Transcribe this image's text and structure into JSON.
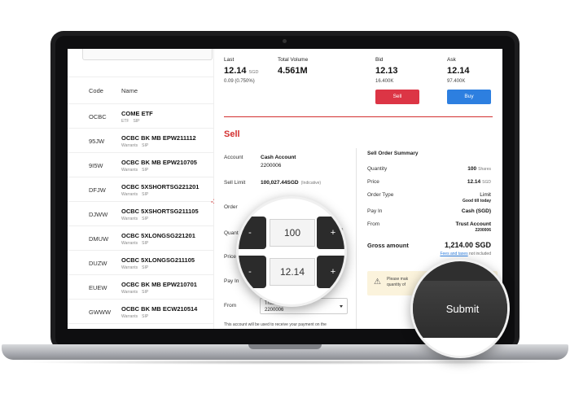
{
  "list": {
    "headers": {
      "code": "Code",
      "name": "Name"
    },
    "rows": [
      {
        "code": "OCBC",
        "name": "COME ETF",
        "tags": [
          "ETF",
          "SIP"
        ]
      },
      {
        "code": "95JW",
        "name": "OCBC BK MB EPW211112",
        "tags": [
          "Warrants",
          "SIP"
        ]
      },
      {
        "code": "9I5W",
        "name": "OCBC BK MB EPW210705",
        "tags": [
          "Warrants",
          "SIP"
        ]
      },
      {
        "code": "DFJW",
        "name": "OCBC 5XSHORTSG221201",
        "tags": [
          "Warrants",
          "SIP"
        ]
      },
      {
        "code": "DJWW",
        "name": "OCBC 5XSHORTSG211105",
        "tags": [
          "Warrants",
          "SIP"
        ]
      },
      {
        "code": "DMUW",
        "name": "OCBC 5XLONGSG221201",
        "tags": [
          "Warrants",
          "SIP"
        ]
      },
      {
        "code": "DUZW",
        "name": "OCBC 5XLONGSG211105",
        "tags": [
          "Warrants",
          "SIP"
        ]
      },
      {
        "code": "EUEW",
        "name": "OCBC BK MB EPW210701",
        "tags": [
          "Warrants",
          "SIP"
        ]
      },
      {
        "code": "GWWW",
        "name": "OCBC BK MB ECW210514",
        "tags": [
          "Warrants",
          "SIP"
        ]
      }
    ],
    "partial_red": "-1"
  },
  "quote": {
    "last_label": "Last",
    "last_value": "12.14",
    "last_unit": "SGD",
    "change": "0.09 (0.750%)",
    "volume_label": "Total Volume",
    "volume_value": "4.561M",
    "bid_label": "Bid",
    "bid_value": "12.13",
    "bid_size": "16.400K",
    "ask_label": "Ask",
    "ask_value": "12.14",
    "ask_size": "97.400K",
    "sell_button": "Sell",
    "buy_button": "Buy"
  },
  "form": {
    "title": "Sell",
    "account_label": "Account",
    "account_value": "Cash Account",
    "account_number": "2200006",
    "limit_label": "Sell Limit",
    "limit_value": "100,027.44SGD",
    "limit_note": "(Indicative)",
    "order_label": "Order",
    "quantity_label": "Quant",
    "quantity_suffix": "les",
    "price_label": "Price",
    "payin_label": "Pay In",
    "from_label": "From",
    "from_value_1": "Trust Account",
    "from_value_2": "2200006",
    "footnote": "This account will be used to receive your payment on the"
  },
  "summary": {
    "title": "Sell Order Summary",
    "quantity_label": "Quantity",
    "quantity_value": "100",
    "quantity_unit": "Shares",
    "price_label": "Price",
    "price_value": "12.14",
    "price_unit": "SGD",
    "order_type_label": "Order Type",
    "order_type_value": "Limit",
    "order_type_sub": "Good till today",
    "payin_label": "Pay In",
    "payin_value": "Cash (SGD)",
    "from_label": "From",
    "from_value": "Trust Account",
    "from_sub": "2200006",
    "gross_label": "Gross amount",
    "gross_value": "1,214.00 SGD",
    "fees_link": "Fees and taxes",
    "fees_rest": "not included",
    "warn_line1": "Please mak",
    "warn_line2": "quantity of"
  },
  "magnifier": {
    "quantity_value": "100",
    "price_value": "12.14",
    "minus": "-",
    "plus": "+",
    "submit": "Submit"
  }
}
